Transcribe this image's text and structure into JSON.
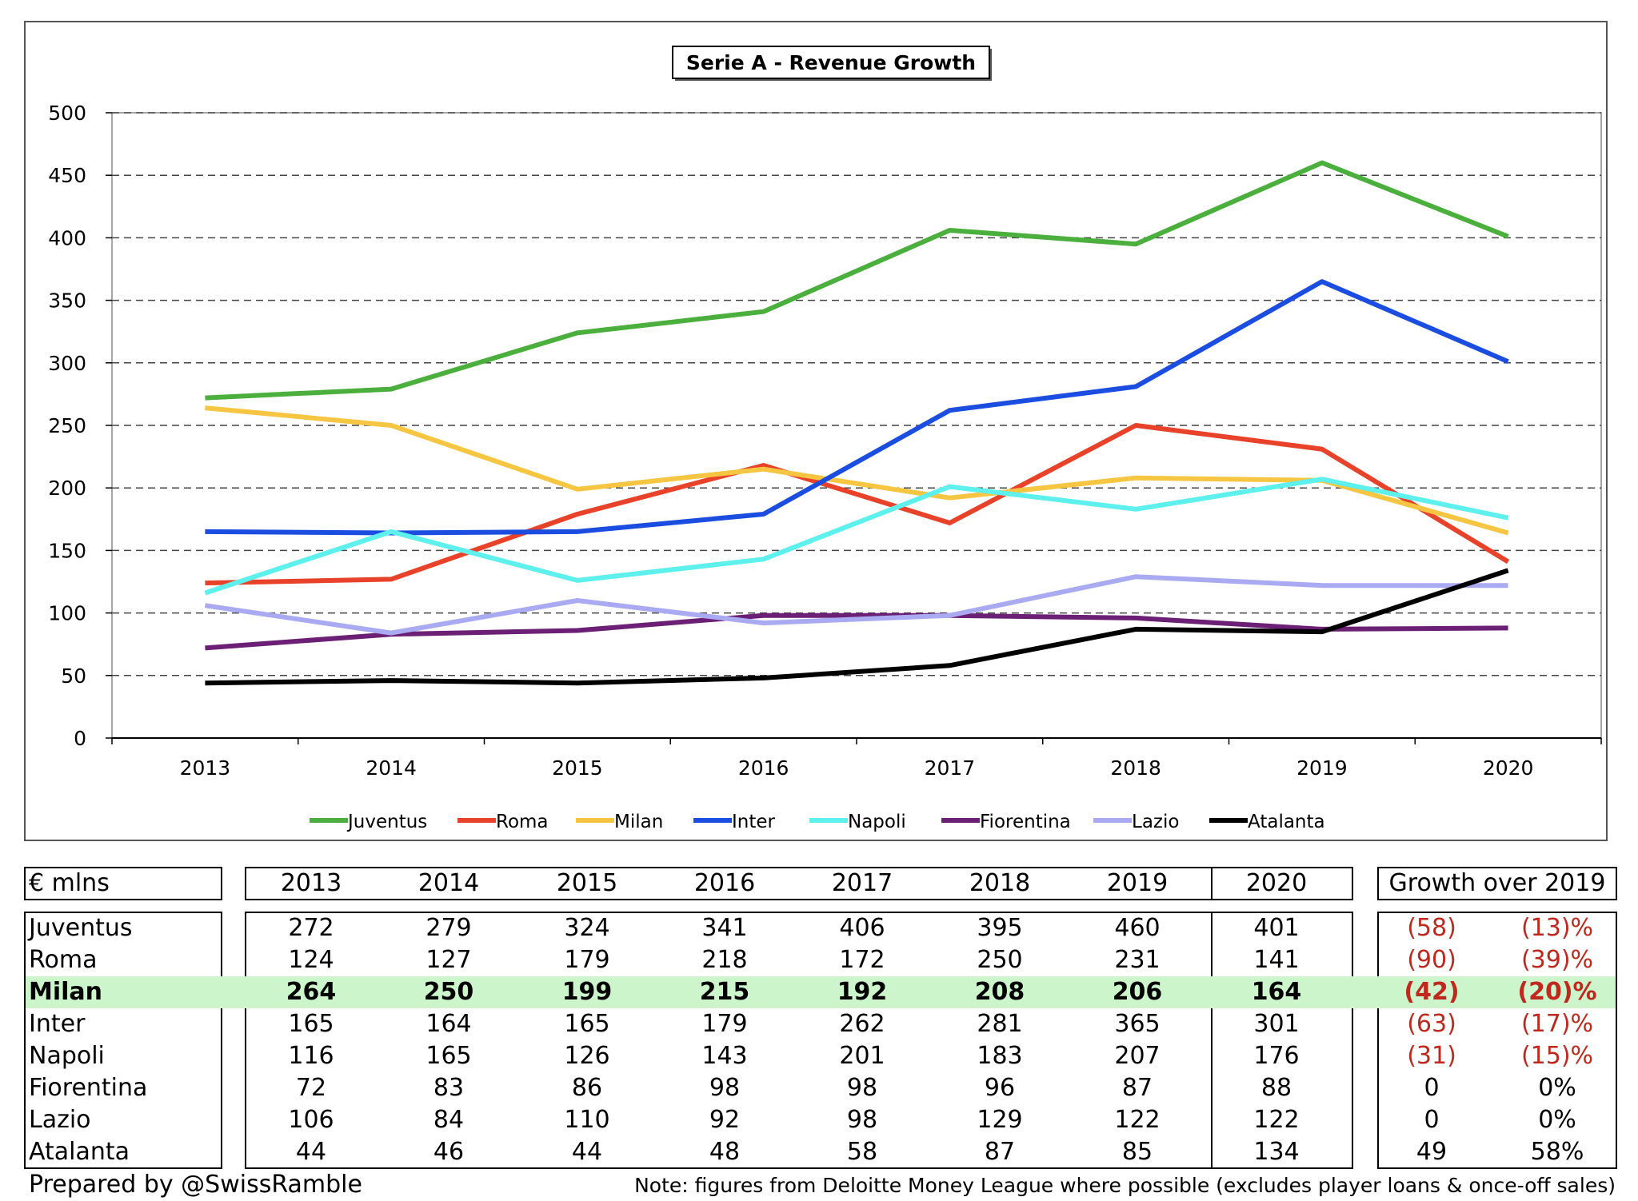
{
  "chart_data": {
    "type": "line",
    "title": "Serie A - Revenue Growth",
    "categories": [
      "2013",
      "2014",
      "2015",
      "2016",
      "2017",
      "2018",
      "2019",
      "2020"
    ],
    "ylim": [
      0,
      500
    ],
    "yticks": [
      "0",
      "50",
      "100",
      "150",
      "200",
      "250",
      "300",
      "350",
      "400",
      "450",
      "500"
    ],
    "grid": true,
    "legend_position": "bottom",
    "series": [
      {
        "name": "Juventus",
        "color": "#4aaf3c",
        "values": [
          272,
          279,
          324,
          341,
          406,
          395,
          460,
          401
        ]
      },
      {
        "name": "Roma",
        "color": "#e8432a",
        "values": [
          124,
          127,
          179,
          218,
          172,
          250,
          231,
          141
        ]
      },
      {
        "name": "Milan",
        "color": "#f6c642",
        "values": [
          264,
          250,
          199,
          215,
          192,
          208,
          206,
          164
        ]
      },
      {
        "name": "Inter",
        "color": "#1a4de0",
        "values": [
          165,
          164,
          165,
          179,
          262,
          281,
          365,
          301
        ]
      },
      {
        "name": "Napoli",
        "color": "#5df0ec",
        "values": [
          116,
          165,
          126,
          143,
          201,
          183,
          207,
          176
        ]
      },
      {
        "name": "Fiorentina",
        "color": "#6b1f75",
        "values": [
          72,
          83,
          86,
          98,
          98,
          96,
          87,
          88
        ]
      },
      {
        "name": "Lazio",
        "color": "#aaaaf2",
        "values": [
          106,
          84,
          110,
          92,
          98,
          129,
          122,
          122
        ]
      },
      {
        "name": "Atalanta",
        "color": "#000000",
        "values": [
          44,
          46,
          44,
          48,
          58,
          87,
          85,
          134
        ]
      }
    ]
  },
  "table": {
    "unit_label": "€ mlns",
    "years": [
      "2013",
      "2014",
      "2015",
      "2016",
      "2017",
      "2018",
      "2019",
      "2020"
    ],
    "growth_header": "Growth over 2019",
    "highlight_color": "#ccf5cc",
    "rows": [
      {
        "club": "Juventus",
        "values": [
          "272",
          "279",
          "324",
          "341",
          "406",
          "395",
          "460",
          "401"
        ],
        "growth_abs": "(58)",
        "growth_pct": "(13)%",
        "negative": true,
        "highlight": false
      },
      {
        "club": "Roma",
        "values": [
          "124",
          "127",
          "179",
          "218",
          "172",
          "250",
          "231",
          "141"
        ],
        "growth_abs": "(90)",
        "growth_pct": "(39)%",
        "negative": true,
        "highlight": false
      },
      {
        "club": "Milan",
        "values": [
          "264",
          "250",
          "199",
          "215",
          "192",
          "208",
          "206",
          "164"
        ],
        "growth_abs": "(42)",
        "growth_pct": "(20)%",
        "negative": true,
        "highlight": true
      },
      {
        "club": "Inter",
        "values": [
          "165",
          "164",
          "165",
          "179",
          "262",
          "281",
          "365",
          "301"
        ],
        "growth_abs": "(63)",
        "growth_pct": "(17)%",
        "negative": true,
        "highlight": false
      },
      {
        "club": "Napoli",
        "values": [
          "116",
          "165",
          "126",
          "143",
          "201",
          "183",
          "207",
          "176"
        ],
        "growth_abs": "(31)",
        "growth_pct": "(15)%",
        "negative": true,
        "highlight": false
      },
      {
        "club": "Fiorentina",
        "values": [
          "72",
          "83",
          "86",
          "98",
          "98",
          "96",
          "87",
          "88"
        ],
        "growth_abs": "0",
        "growth_pct": "0%",
        "negative": false,
        "highlight": false
      },
      {
        "club": "Lazio",
        "values": [
          "106",
          "84",
          "110",
          "92",
          "98",
          "129",
          "122",
          "122"
        ],
        "growth_abs": "0",
        "growth_pct": "0%",
        "negative": false,
        "highlight": false
      },
      {
        "club": "Atalanta",
        "values": [
          "44",
          "46",
          "44",
          "48",
          "58",
          "87",
          "85",
          "134"
        ],
        "growth_abs": "49",
        "growth_pct": "58%",
        "negative": false,
        "highlight": false
      }
    ]
  },
  "footer": {
    "prepared_by": "Prepared by @SwissRamble",
    "note": "Note: figures from Deloitte Money League where possible (excludes player loans & once-off sales)"
  }
}
